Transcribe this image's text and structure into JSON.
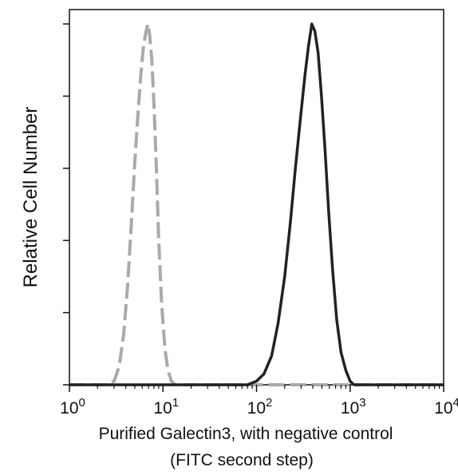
{
  "chart_data": {
    "type": "line",
    "title": "",
    "xlabel": "Purified Galectin3, with negative control",
    "xlabel_line2": "(FITC second step)",
    "ylabel": "Relative Cell Number",
    "x_scale": "log",
    "xlim": [
      1,
      10000
    ],
    "ylim": [
      0,
      100
    ],
    "x_ticks": [
      {
        "base": "10",
        "exp": "0",
        "value": 1
      },
      {
        "base": "10",
        "exp": "1",
        "value": 10
      },
      {
        "base": "10",
        "exp": "2",
        "value": 100
      },
      {
        "base": "10",
        "exp": "3",
        "value": 1000
      },
      {
        "base": "10",
        "exp": "4",
        "value": 10000
      }
    ],
    "y_ticks": [
      0,
      20,
      40,
      60,
      80,
      100
    ],
    "grid": false,
    "legend": "none",
    "series": [
      {
        "color": "#aaaaaa",
        "style": "dashed",
        "x": [
          1,
          2.5,
          3,
          3.4,
          3.8,
          4.2,
          4.6,
          5.0,
          5.4,
          5.8,
          6.2,
          6.6,
          6.9,
          7.2,
          7.6,
          8.0,
          8.5,
          9.0,
          9.7,
          10.5,
          11.3,
          12.3,
          13.5,
          10000
        ],
        "y": [
          0,
          0,
          1,
          5,
          14,
          28,
          45,
          62,
          75,
          86,
          94,
          98,
          100,
          97,
          90,
          78,
          60,
          40,
          22,
          10,
          4,
          1,
          0,
          0
        ]
      },
      {
        "color": "#222222",
        "style": "solid",
        "x": [
          1,
          80,
          100,
          120,
          145,
          170,
          200,
          230,
          260,
          295,
          330,
          360,
          390,
          420,
          455,
          495,
          540,
          590,
          650,
          720,
          800,
          900,
          1000,
          1100,
          10000
        ],
        "y": [
          0,
          0,
          1,
          3,
          8,
          17,
          30,
          45,
          60,
          74,
          86,
          94,
          100,
          98,
          92,
          80,
          65,
          48,
          32,
          18,
          9,
          4,
          1,
          0,
          0
        ]
      }
    ]
  }
}
